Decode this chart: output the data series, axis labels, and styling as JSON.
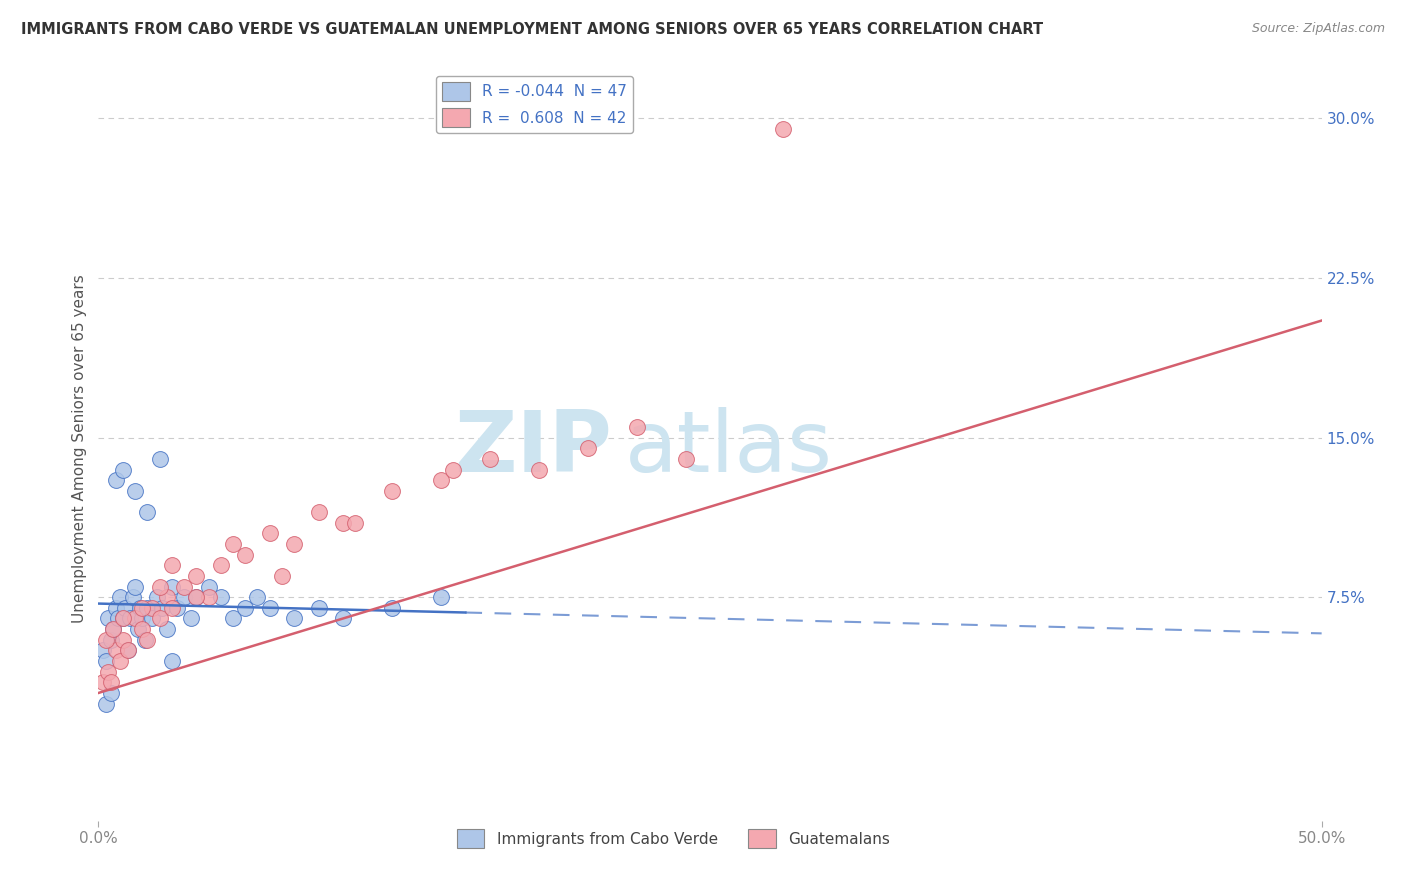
{
  "title": "IMMIGRANTS FROM CABO VERDE VS GUATEMALAN UNEMPLOYMENT AMONG SENIORS OVER 65 YEARS CORRELATION CHART",
  "source": "Source: ZipAtlas.com",
  "ylabel": "Unemployment Among Seniors over 65 years",
  "ytick_values": [
    7.5,
    15.0,
    22.5,
    30.0
  ],
  "ytick_labels": [
    "7.5%",
    "15.0%",
    "22.5%",
    "30.0%"
  ],
  "xlim": [
    0.0,
    50.0
  ],
  "ylim": [
    -3.0,
    32.0
  ],
  "legend1_label": "R = -0.044  N = 47",
  "legend2_label": "R =  0.608  N = 42",
  "legend1_fill": "#aec6e8",
  "legend2_fill": "#f4a8b0",
  "line1_color": "#4472c4",
  "line2_color": "#d45f6e",
  "scatter1_fill": "#aec6e8",
  "scatter1_edge": "#4472c4",
  "scatter2_fill": "#f4a8b0",
  "scatter2_edge": "#d45f6e",
  "watermark_color": "#cde4f0",
  "grid_color": "#cccccc",
  "bg_color": "#ffffff",
  "title_color": "#333333",
  "source_color": "#888888",
  "ylabel_color": "#555555",
  "tick_color": "#4472c4",
  "xtick_color": "#888888",
  "cabo_verde_x": [
    0.2,
    0.3,
    0.4,
    0.5,
    0.6,
    0.7,
    0.8,
    0.9,
    1.0,
    1.1,
    1.2,
    1.3,
    1.4,
    1.5,
    1.6,
    1.7,
    1.8,
    1.9,
    2.0,
    2.2,
    2.4,
    2.6,
    2.8,
    3.0,
    3.2,
    3.5,
    3.8,
    4.0,
    4.5,
    5.0,
    5.5,
    6.0,
    6.5,
    7.0,
    8.0,
    9.0,
    10.0,
    12.0,
    14.0,
    0.3,
    0.5,
    0.7,
    1.0,
    1.5,
    2.0,
    2.5,
    3.0
  ],
  "cabo_verde_y": [
    5.0,
    4.5,
    6.5,
    5.5,
    6.0,
    7.0,
    6.5,
    7.5,
    6.5,
    7.0,
    5.0,
    6.5,
    7.5,
    8.0,
    6.0,
    7.0,
    6.5,
    5.5,
    7.0,
    6.5,
    7.5,
    7.0,
    6.0,
    8.0,
    7.0,
    7.5,
    6.5,
    7.5,
    8.0,
    7.5,
    6.5,
    7.0,
    7.5,
    7.0,
    6.5,
    7.0,
    6.5,
    7.0,
    7.5,
    2.5,
    3.0,
    13.0,
    13.5,
    12.5,
    11.5,
    14.0,
    4.5
  ],
  "guatemalan_x": [
    0.2,
    0.4,
    0.5,
    0.7,
    0.9,
    1.0,
    1.2,
    1.5,
    1.8,
    2.0,
    2.2,
    2.5,
    2.8,
    3.0,
    3.5,
    4.0,
    4.5,
    5.0,
    6.0,
    7.0,
    8.0,
    9.0,
    10.0,
    12.0,
    14.0,
    16.0,
    18.0,
    20.0,
    22.0,
    24.0,
    28.0,
    3.0,
    5.5,
    7.5,
    10.5,
    14.5,
    0.3,
    0.6,
    1.0,
    1.8,
    2.5,
    4.0
  ],
  "guatemalan_y": [
    3.5,
    4.0,
    3.5,
    5.0,
    4.5,
    5.5,
    5.0,
    6.5,
    6.0,
    5.5,
    7.0,
    6.5,
    7.5,
    7.0,
    8.0,
    8.5,
    7.5,
    9.0,
    9.5,
    10.5,
    10.0,
    11.5,
    11.0,
    12.5,
    13.0,
    14.0,
    13.5,
    14.5,
    15.5,
    14.0,
    29.5,
    9.0,
    10.0,
    8.5,
    11.0,
    13.5,
    5.5,
    6.0,
    6.5,
    7.0,
    8.0,
    7.5
  ],
  "cv_line_x0": 0.0,
  "cv_line_x1": 50.0,
  "cv_line_y0": 7.2,
  "cv_line_y1": 5.8,
  "cv_solid_end": 15.0,
  "gt_line_x0": 0.0,
  "gt_line_x1": 50.0,
  "gt_line_y0": 3.0,
  "gt_line_y1": 20.5
}
